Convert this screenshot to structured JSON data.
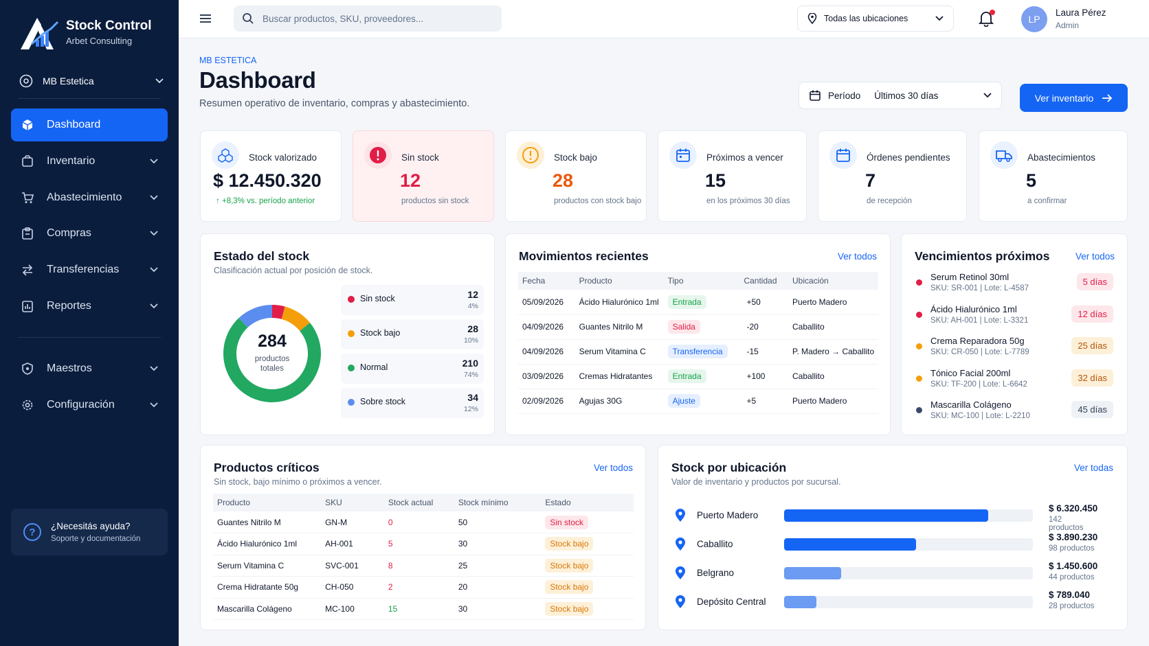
{
  "brand": {
    "title": "Stock Control",
    "subtitle": "Arbet Consulting"
  },
  "org": {
    "name": "MB Estetica"
  },
  "nav": [
    {
      "label": "Dashboard",
      "icon": "box-icon"
    },
    {
      "label": "Inventario",
      "icon": "package-icon"
    },
    {
      "label": "Abastecimiento",
      "icon": "cart-icon"
    },
    {
      "label": "Compras",
      "icon": "clipboard-icon"
    },
    {
      "label": "Transferencias",
      "icon": "transfer-icon"
    },
    {
      "label": "Reportes",
      "icon": "report-icon"
    },
    {
      "label": "Maestros",
      "icon": "shield-icon"
    },
    {
      "label": "Configuración",
      "icon": "gear-icon"
    }
  ],
  "help": {
    "title": "¿Necesitás ayuda?",
    "subtitle": "Soporte y documentación"
  },
  "topbar": {
    "search_placeholder": "Buscar productos, SKU, proveedores...",
    "location": "Todas las ubicaciones",
    "user_initials": "LP",
    "user_name": "Laura Pérez",
    "user_role": "Admin"
  },
  "header": {
    "breadcrumb": "MB ESTETICA",
    "title": "Dashboard",
    "subtitle": "Resumen operativo de inventario, compras y abastecimiento.",
    "period_label": "Período",
    "period_value": "Últimos 30 días",
    "cta": "Ver inventario"
  },
  "kpis": {
    "stock_valorizado": {
      "title": "Stock valorizado",
      "value": "$ 12.450.320",
      "sub": "+8,3% vs. período anterior"
    },
    "sin_stock": {
      "title": "Sin stock",
      "value": "12",
      "sub": "productos sin stock"
    },
    "stock_bajo": {
      "title": "Stock bajo",
      "value": "28",
      "sub": "productos con stock bajo"
    },
    "proximos": {
      "title": "Próximos a vencer",
      "value": "15",
      "sub": "en los próximos 30 días"
    },
    "ordenes": {
      "title": "Órdenes pendientes",
      "value": "7",
      "sub": "de recepción"
    },
    "abastecimientos": {
      "title": "Abastecimientos",
      "value": "5",
      "sub": "a confirmar"
    }
  },
  "estado": {
    "title": "Estado del stock",
    "subtitle": "Clasificación actual por posición de stock.",
    "total": "284",
    "total_label": "productos totales",
    "rows": [
      {
        "label": "Sin stock",
        "value": "12",
        "pct": "4%",
        "color": "#e11d48"
      },
      {
        "label": "Stock bajo",
        "value": "28",
        "pct": "10%",
        "color": "#f59e0b"
      },
      {
        "label": "Normal",
        "value": "210",
        "pct": "74%",
        "color": "#22a861"
      },
      {
        "label": "Sobre stock",
        "value": "34",
        "pct": "12%",
        "color": "#5b8def"
      }
    ]
  },
  "movimientos": {
    "title": "Movimientos recientes",
    "link": "Ver todos",
    "headers": [
      "Fecha",
      "Producto",
      "Tipo",
      "Cantidad",
      "Ubicación"
    ],
    "rows": [
      {
        "fecha": "05/09/2026",
        "producto": "Ácido Hialurónico 1ml",
        "tipo": "Entrada",
        "cantidad": "+50",
        "ubicacion": "Puerto Madero"
      },
      {
        "fecha": "04/09/2026",
        "producto": "Guantes Nitrilo M",
        "tipo": "Salida",
        "cantidad": "-20",
        "ubicacion": "Caballito"
      },
      {
        "fecha": "04/09/2026",
        "producto": "Serum Vitamina C",
        "tipo": "Transferencia",
        "cantidad": "-15",
        "ubicacion": "P. Madero → Caballito"
      },
      {
        "fecha": "03/09/2026",
        "producto": "Cremas Hidratantes",
        "tipo": "Entrada",
        "cantidad": "+100",
        "ubicacion": "Caballito"
      },
      {
        "fecha": "02/09/2026",
        "producto": "Agujas 30G",
        "tipo": "Ajuste",
        "cantidad": "+5",
        "ubicacion": "Puerto Madero"
      }
    ]
  },
  "vencimientos": {
    "title": "Vencimientos próximos",
    "link": "Ver todos",
    "rows": [
      {
        "name": "Serum Retinol 30ml",
        "sku": "SKU: SR-001 | Lote: L-4587",
        "days": "5 días",
        "dot": "#e11d48",
        "bg": "#fde7ea",
        "fg": "#e11d48"
      },
      {
        "name": "Ácido Hialurónico 1ml",
        "sku": "SKU: AH-001 | Lote: L-3321",
        "days": "12 días",
        "dot": "#e11d48",
        "bg": "#fde7ea",
        "fg": "#e11d48"
      },
      {
        "name": "Crema Reparadora 50g",
        "sku": "SKU: CR-050 | Lote: L-7789",
        "days": "25 días",
        "dot": "#f59e0b",
        "bg": "#fdf0d8",
        "fg": "#b45309"
      },
      {
        "name": "Tónico Facial 200ml",
        "sku": "SKU: TF-200 | Lote: L-6642",
        "days": "32 días",
        "dot": "#f59e0b",
        "bg": "#fdf0d8",
        "fg": "#b45309"
      },
      {
        "name": "Mascarilla Colágeno",
        "sku": "SKU: MC-100 | Lote: L-2210",
        "days": "45 días",
        "dot": "#3b4a6b",
        "bg": "#eef1f6",
        "fg": "#334155"
      }
    ]
  },
  "criticos": {
    "title": "Productos críticos",
    "subtitle": "Sin stock, bajo mínimo o próximos a vencer.",
    "link": "Ver todos",
    "headers": [
      "Producto",
      "SKU",
      "Stock actual",
      "Stock mínimo",
      "Estado"
    ],
    "rows": [
      {
        "producto": "Guantes Nitrilo M",
        "sku": "GN-M",
        "actual": "0",
        "minimo": "50",
        "estado": "Sin stock"
      },
      {
        "producto": "Ácido Hialurónico 1ml",
        "sku": "AH-001",
        "actual": "5",
        "minimo": "30",
        "estado": "Stock bajo"
      },
      {
        "producto": "Serum Vitamina C",
        "sku": "SVC-001",
        "actual": "8",
        "minimo": "25",
        "estado": "Stock bajo"
      },
      {
        "producto": "Crema Hidratante 50g",
        "sku": "CH-050",
        "actual": "2",
        "minimo": "20",
        "estado": "Stock bajo"
      },
      {
        "producto": "Mascarilla Colágeno",
        "sku": "MC-100",
        "actual": "15",
        "minimo": "30",
        "estado": "Stock bajo"
      }
    ]
  },
  "ubicacion": {
    "title": "Stock por ubicación",
    "subtitle": "Valor de inventario y productos por sucursal.",
    "link": "Ver todas",
    "rows": [
      {
        "name": "Puerto Madero",
        "value": "$ 6.320.450",
        "products": "142 productos",
        "share": 0.82,
        "color": "#1565f5"
      },
      {
        "name": "Caballito",
        "value": "$ 3.890.230",
        "products": "98 productos",
        "share": 0.53,
        "color": "#1565f5"
      },
      {
        "name": "Belgrano",
        "value": "$ 1.450.600",
        "products": "44 productos",
        "share": 0.23,
        "color": "#6b9bf2"
      },
      {
        "name": "Depósito Central",
        "value": "$ 789.040",
        "products": "28 productos",
        "share": 0.13,
        "color": "#6b9bf2"
      }
    ]
  }
}
